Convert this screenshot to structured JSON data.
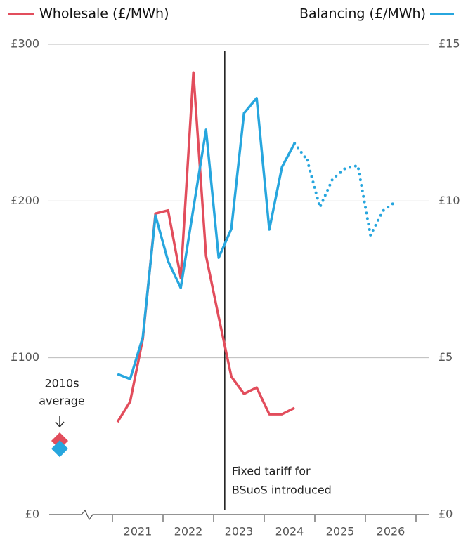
{
  "chart_data": {
    "type": "line",
    "x": [
      2021.1,
      2021.35,
      2021.6,
      2021.85,
      2022.1,
      2022.35,
      2022.6,
      2022.85,
      2023.1,
      2023.35,
      2023.6,
      2023.85,
      2024.1,
      2024.35,
      2024.6,
      2024.85,
      2025.1,
      2025.35,
      2025.6,
      2025.85,
      2026.1,
      2026.35,
      2026.6
    ],
    "series": [
      {
        "name": "Wholesale (£/MWh)",
        "color": "#e24d5c",
        "axis": "y",
        "values": [
          59,
          72,
          112,
          192,
          194,
          151,
          282,
          165,
          126,
          88,
          77,
          81,
          64,
          64,
          68,
          null,
          null,
          null,
          null,
          null,
          null,
          null,
          null
        ]
      },
      {
        "name": "Balancing (£/MWh)",
        "color": "#27a6de",
        "axis": "y2",
        "values": [
          4.48,
          4.32,
          5.66,
          9.54,
          8.08,
          7.23,
          9.76,
          12.27,
          8.19,
          9.11,
          12.8,
          13.28,
          9.09,
          11.08,
          11.84,
          null,
          null,
          null,
          null,
          null,
          null,
          null,
          null
        ],
        "forecast": [
          null,
          null,
          null,
          null,
          null,
          null,
          null,
          null,
          null,
          null,
          null,
          null,
          null,
          null,
          null,
          11.3,
          9.8,
          10.7,
          11.04,
          11.13,
          8.91,
          9.69,
          9.98
        ]
      }
    ],
    "xlim": [
      2021,
      2027
    ],
    "xticks": [
      {
        "value": 2021,
        "label": "2021"
      },
      {
        "value": 2022,
        "label": "2022"
      },
      {
        "value": 2023,
        "label": "2023"
      },
      {
        "value": 2024,
        "label": "2024"
      },
      {
        "value": 2025,
        "label": "2025"
      },
      {
        "value": 2026,
        "label": "2026"
      },
      2027
    ],
    "ylim": [
      0,
      300
    ],
    "yticks": [
      {
        "value": 0,
        "label": "£0"
      },
      {
        "value": 100,
        "label": "£100"
      },
      {
        "value": 200,
        "label": "£200"
      },
      {
        "value": 300,
        "label": "£300"
      }
    ],
    "y2lim": [
      0,
      15
    ],
    "y2ticks": [
      {
        "value": 0,
        "label": "£0"
      },
      {
        "value": 5,
        "label": "£5"
      },
      {
        "value": 10,
        "label": "£10"
      },
      {
        "value": 15,
        "label": "£15"
      }
    ],
    "grid": true,
    "average": {
      "lines": [
        "2010s",
        "average"
      ],
      "wholesale": 47,
      "balancing": 2.1
    },
    "event": {
      "x": 2023.22,
      "lines": [
        "Fixed tariff for",
        "BSuoS introduced"
      ]
    }
  }
}
